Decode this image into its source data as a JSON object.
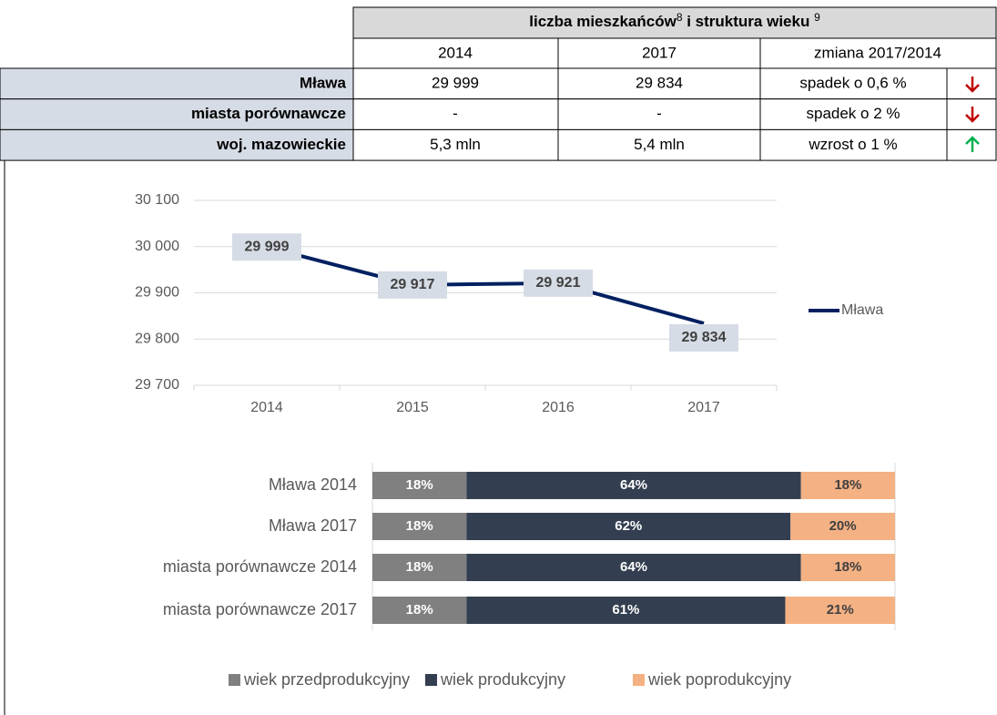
{
  "table": {
    "title": [
      "liczba mieszkańców",
      "8",
      " i struktura wieku ",
      "9"
    ],
    "columns": [
      "2014",
      "2017",
      "zmiana 2017/2014"
    ],
    "rows": [
      [
        "Mława",
        "29 999",
        "29 834",
        "spadek o 0,6 %"
      ],
      [
        "miasta porównawcze",
        "-",
        "-",
        "spadek o 2 %"
      ],
      [
        "woj. mazowieckie",
        "5,3 mln",
        "5,4 mln",
        "wzrost o 1 %"
      ]
    ]
  },
  "chart_data": [
    {
      "type": "line",
      "categories": [
        "2014",
        "2015",
        "2016",
        "2017"
      ],
      "series": [
        {
          "name": "Mława",
          "color": "#002060",
          "values": [
            29999,
            29917,
            29921,
            29834
          ],
          "value_labels": [
            "29 999",
            "29 917",
            "29 921",
            "29 834"
          ]
        }
      ],
      "ylim": [
        29700,
        30100
      ],
      "yticks": [
        {
          "value": 29700,
          "label": "29 700"
        },
        {
          "value": 29800,
          "label": "29 800"
        },
        {
          "value": 29900,
          "label": "29 900"
        },
        {
          "value": 30000,
          "label": "30 000"
        },
        {
          "value": 30100,
          "label": "30 100"
        }
      ],
      "grid": true,
      "legend": "right"
    },
    {
      "type": "stacked-barh",
      "categories": [
        "Mława 2014",
        "Mława 2017",
        "miasta porównawcze 2014",
        "miasta porównawcze 2017"
      ],
      "xlim": [
        0,
        100
      ],
      "series": [
        {
          "name": "wiek przedprodukcyjny",
          "color": "#808080",
          "values": [
            18,
            18,
            18,
            18
          ],
          "value_labels": [
            "18%",
            "18%",
            "18%",
            "18%"
          ]
        },
        {
          "name": "wiek produkcyjny",
          "color": "#333f50",
          "values": [
            64,
            62,
            64,
            61
          ],
          "value_labels": [
            "64%",
            "62%",
            "64%",
            "61%"
          ]
        },
        {
          "name": "wiek poprodukcyjny",
          "color": "#f4b183",
          "values": [
            18,
            20,
            18,
            21
          ],
          "value_labels": [
            "18%",
            "20%",
            "18%",
            "21%"
          ]
        }
      ],
      "legend": "bottom"
    }
  ]
}
